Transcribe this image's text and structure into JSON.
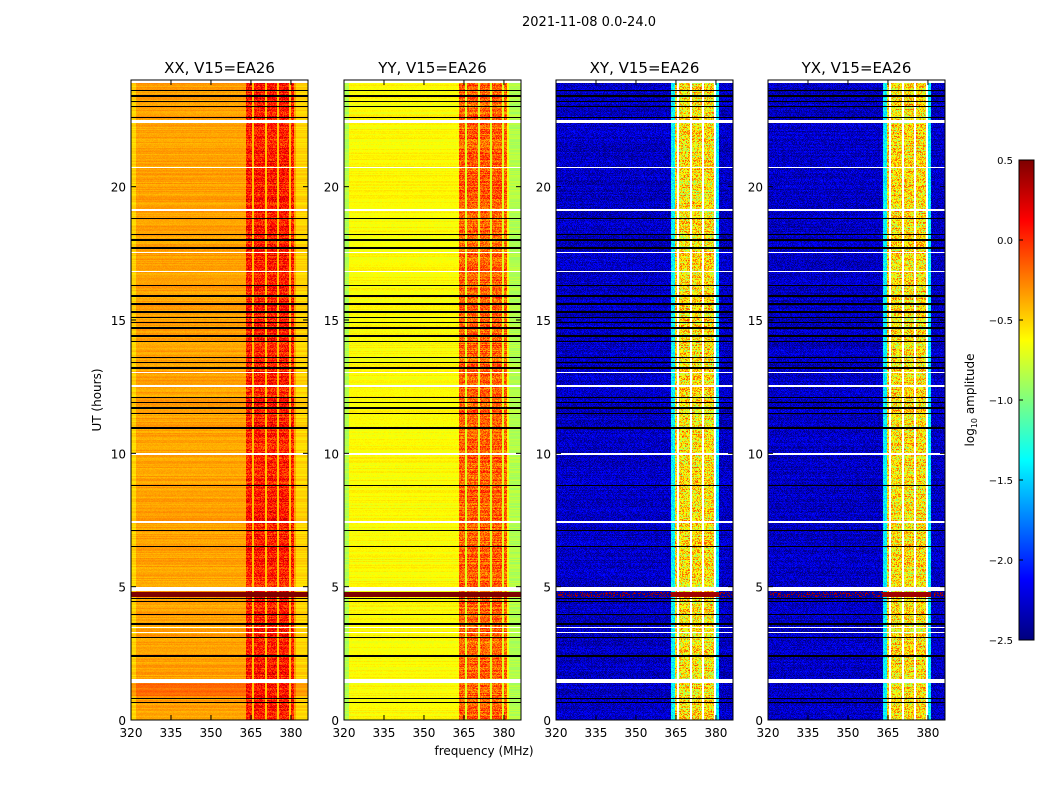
{
  "chart_data": {
    "type": "heatmap",
    "suptitle": "2021-11-08 0.0-24.0",
    "xlabel": "frequency (MHz)",
    "ylabel": "UT (hours)",
    "xlim": [
      320,
      386.4
    ],
    "ylim": [
      0,
      24
    ],
    "xticks": [
      "320",
      "335",
      "350",
      "365",
      "380"
    ],
    "xtick_values": [
      320,
      335,
      350,
      365,
      380
    ],
    "yticks": [
      "0",
      "5",
      "10",
      "15",
      "20"
    ],
    "ytick_values": [
      0,
      5,
      10,
      15,
      20
    ],
    "panels": [
      {
        "title": "XX, V15=EA26",
        "base_level": -0.35,
        "band_level": 0.05,
        "edge_level": -0.5
      },
      {
        "title": "YY, V15=EA26",
        "base_level": -0.62,
        "band_level": -0.15,
        "edge_level": -0.85
      },
      {
        "title": "XY, V15=EA26",
        "base_level": -2.3,
        "band_level": -0.55,
        "edge_level": -2.3
      },
      {
        "title": "YX, V15=EA26",
        "base_level": -2.3,
        "band_level": -0.55,
        "edge_level": -2.3
      }
    ],
    "band_mhz": [
      363,
      381
    ],
    "flagged_intervals_hours": [
      [
        1.38,
        1.52
      ],
      [
        4.85,
        5.0
      ],
      [
        3.25,
        3.3
      ],
      [
        3.45,
        3.5
      ],
      [
        7.4,
        7.45
      ],
      [
        9.95,
        10.0
      ],
      [
        12.5,
        12.55
      ],
      [
        13.0,
        13.05
      ],
      [
        16.8,
        16.85
      ],
      [
        17.5,
        17.55
      ],
      [
        19.1,
        19.15
      ],
      [
        20.7,
        20.75
      ],
      [
        22.4,
        22.5
      ],
      [
        23.9,
        24.0
      ]
    ],
    "blanked_rows_hours": [
      0.65,
      0.8,
      2.4,
      3.1,
      3.6,
      3.95,
      4.45,
      4.55,
      6.5,
      7.1,
      8.8,
      10.95,
      11.5,
      11.7,
      11.9,
      12.1,
      13.2,
      13.4,
      13.6,
      14.2,
      14.4,
      14.7,
      14.9,
      15.1,
      15.3,
      15.6,
      15.9,
      16.3,
      17.7,
      18.0,
      18.2,
      18.8,
      22.6,
      23.0,
      23.2,
      23.4,
      23.6
    ],
    "rfi_burst_hours": [
      4.6,
      4.8
    ],
    "colorbar": {
      "label": "log",
      "label_sub": "10",
      "label_rest": " amplitude",
      "colormap": "jet",
      "range": [
        -2.5,
        0.5
      ],
      "ticks": [
        "0.5",
        "0.0",
        "−0.5",
        "−1.0",
        "−1.5",
        "−2.0",
        "−2.5"
      ],
      "tick_values": [
        0.5,
        0.0,
        -0.5,
        -1.0,
        -1.5,
        -2.0,
        -2.5
      ]
    }
  }
}
